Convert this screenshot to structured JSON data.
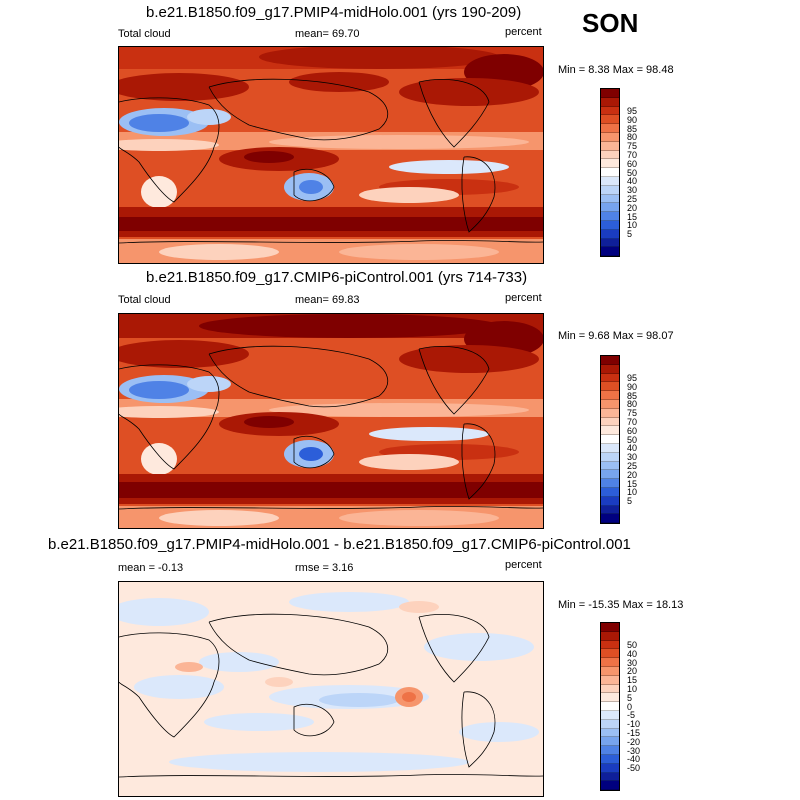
{
  "season": "SON",
  "colors": {
    "abs": [
      "#7f0000",
      "#aa1805",
      "#c93011",
      "#de4f24",
      "#ee7246",
      "#f6956c",
      "#fbb596",
      "#fdd2bd",
      "#fee9dd",
      "#ffffff",
      "#dbe8fb",
      "#bcd5f8",
      "#9bbff4",
      "#77a4ee",
      "#4f82e6",
      "#2c5ed9",
      "#1a3cc0",
      "#0f1f99",
      "#00007f"
    ],
    "diff": [
      "#7f0000",
      "#aa1805",
      "#c93011",
      "#de4f24",
      "#ee7246",
      "#f6956c",
      "#fbb596",
      "#fdd2bd",
      "#fee9dd",
      "#ffffff",
      "#dbe8fb",
      "#bcd5f8",
      "#9bbff4",
      "#77a4ee",
      "#4f82e6",
      "#2c5ed9",
      "#1a3cc0",
      "#0f1f99",
      "#00007f"
    ]
  },
  "panels": [
    {
      "title": "b.e21.B1850.f09_g17.PMIP4-midHolo.001 (yrs 190-209)",
      "left_label": "Total cloud",
      "mid_label": "mean=  69.70",
      "units": "percent",
      "minmax": "Min =  8.38 Max =  98.48",
      "colorbar_labels": [
        "95",
        "90",
        "85",
        "80",
        "75",
        "70",
        "60",
        "50",
        "40",
        "30",
        "25",
        "20",
        "15",
        "10",
        "5"
      ]
    },
    {
      "title": "b.e21.B1850.f09_g17.CMIP6-piControl.001 (yrs 714-733)",
      "left_label": "Total cloud",
      "mid_label": "mean=  69.83",
      "units": "percent",
      "minmax": "Min =  9.68 Max =  98.07",
      "colorbar_labels": [
        "95",
        "90",
        "85",
        "80",
        "75",
        "70",
        "60",
        "50",
        "40",
        "30",
        "25",
        "20",
        "15",
        "10",
        "5"
      ]
    },
    {
      "title": "b.e21.B1850.f09_g17.PMIP4-midHolo.001 - b.e21.B1850.f09_g17.CMIP6-piControl.001",
      "left_label": "mean =  -0.13",
      "mid_label": "rmse =   3.16",
      "units": "percent",
      "minmax": "Min = -15.35 Max =  18.13",
      "colorbar_labels": [
        "50",
        "40",
        "30",
        "20",
        "15",
        "10",
        "5",
        "0",
        "-5",
        "-10",
        "-15",
        "-20",
        "-30",
        "-40",
        "-50"
      ]
    }
  ],
  "chart_data": [
    {
      "type": "heatmap",
      "title": "b.e21.B1850.f09_g17.PMIP4-midHolo.001 (yrs 190-209)",
      "variable": "Total cloud",
      "units": "percent",
      "mean": 69.7,
      "min": 8.38,
      "max": 98.48,
      "levels": [
        5,
        10,
        15,
        20,
        25,
        30,
        40,
        50,
        60,
        70,
        75,
        80,
        85,
        90,
        95
      ]
    },
    {
      "type": "heatmap",
      "title": "b.e21.B1850.f09_g17.CMIP6-piControl.001 (yrs 714-733)",
      "variable": "Total cloud",
      "units": "percent",
      "mean": 69.83,
      "min": 9.68,
      "max": 98.07,
      "levels": [
        5,
        10,
        15,
        20,
        25,
        30,
        40,
        50,
        60,
        70,
        75,
        80,
        85,
        90,
        95
      ]
    },
    {
      "type": "heatmap",
      "title": "b.e21.B1850.f09_g17.PMIP4-midHolo.001 - b.e21.B1850.f09_g17.CMIP6-piControl.001",
      "units": "percent",
      "mean": -0.13,
      "rmse": 3.16,
      "min": -15.35,
      "max": 18.13,
      "levels": [
        -50,
        -40,
        -30,
        -20,
        -15,
        -10,
        -5,
        0,
        5,
        10,
        15,
        20,
        30,
        40,
        50
      ]
    }
  ]
}
